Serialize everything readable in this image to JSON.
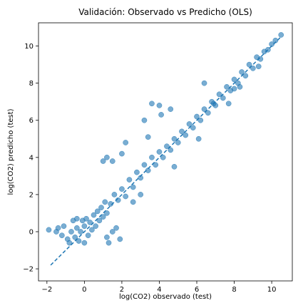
{
  "chart_data": {
    "type": "scatter",
    "title": "Validación: Observado vs Predicho (OLS)",
    "xlabel": "log(CO2) observado (test)",
    "ylabel": "log(CO2) predicho (test)",
    "xlim": [
      -2.45,
      11.1
    ],
    "ylim": [
      -2.65,
      11.25
    ],
    "xticks": [
      -2,
      0,
      2,
      4,
      6,
      8,
      10
    ],
    "yticks": [
      -2,
      0,
      2,
      4,
      6,
      8,
      10
    ],
    "grid": false,
    "point_color": "#1f77b4",
    "point_alpha": 0.6,
    "reference_line": {
      "style": "dashed",
      "color": "#1f77b4",
      "from": [
        -1.8,
        -1.8
      ],
      "to": [
        10.5,
        10.5
      ]
    },
    "points": [
      [
        -1.9,
        0.1
      ],
      [
        -1.5,
        0.0
      ],
      [
        -1.4,
        0.2
      ],
      [
        -1.2,
        -0.2
      ],
      [
        -1.1,
        0.3
      ],
      [
        -0.9,
        -0.4
      ],
      [
        -0.8,
        -0.6
      ],
      [
        -0.7,
        0.0
      ],
      [
        -0.6,
        0.6
      ],
      [
        -0.5,
        -0.3
      ],
      [
        -0.4,
        0.2
      ],
      [
        -0.4,
        0.7
      ],
      [
        -0.3,
        -0.5
      ],
      [
        -0.2,
        0.0
      ],
      [
        -0.1,
        0.6
      ],
      [
        0.0,
        -0.6
      ],
      [
        0.0,
        0.3
      ],
      [
        0.1,
        0.7
      ],
      [
        0.2,
        -0.2
      ],
      [
        0.3,
        0.5
      ],
      [
        0.4,
        0.1
      ],
      [
        0.5,
        0.9
      ],
      [
        0.6,
        0.3
      ],
      [
        0.7,
        1.1
      ],
      [
        0.8,
        0.6
      ],
      [
        0.9,
        1.3
      ],
      [
        1.0,
        0.8
      ],
      [
        1.1,
        1.6
      ],
      [
        1.2,
        -0.3
      ],
      [
        1.3,
        -0.6
      ],
      [
        1.5,
        0.0
      ],
      [
        1.7,
        0.2
      ],
      [
        1.9,
        -0.4
      ],
      [
        1.2,
        1.0
      ],
      [
        1.4,
        1.5
      ],
      [
        1.6,
        2.0
      ],
      [
        1.8,
        1.7
      ],
      [
        2.0,
        2.3
      ],
      [
        2.2,
        1.9
      ],
      [
        2.4,
        2.8
      ],
      [
        2.6,
        2.4
      ],
      [
        2.8,
        3.2
      ],
      [
        3.0,
        2.9
      ],
      [
        3.2,
        3.6
      ],
      [
        3.4,
        3.3
      ],
      [
        3.6,
        4.0
      ],
      [
        3.8,
        3.6
      ],
      [
        4.0,
        4.3
      ],
      [
        4.2,
        4.0
      ],
      [
        4.4,
        4.6
      ],
      [
        4.6,
        4.4
      ],
      [
        4.8,
        5.0
      ],
      [
        5.0,
        4.8
      ],
      [
        5.2,
        5.4
      ],
      [
        5.4,
        5.2
      ],
      [
        5.6,
        5.8
      ],
      [
        5.8,
        5.6
      ],
      [
        6.0,
        6.2
      ],
      [
        6.2,
        6.0
      ],
      [
        6.4,
        6.6
      ],
      [
        6.6,
        6.4
      ],
      [
        6.8,
        7.0
      ],
      [
        7.0,
        6.8
      ],
      [
        7.2,
        7.4
      ],
      [
        7.4,
        7.2
      ],
      [
        7.6,
        7.8
      ],
      [
        7.8,
        7.6
      ],
      [
        8.0,
        8.2
      ],
      [
        8.2,
        8.0
      ],
      [
        8.4,
        8.6
      ],
      [
        8.6,
        8.4
      ],
      [
        8.8,
        9.0
      ],
      [
        9.0,
        8.8
      ],
      [
        9.2,
        9.4
      ],
      [
        9.4,
        9.3
      ],
      [
        9.6,
        9.7
      ],
      [
        9.8,
        9.8
      ],
      [
        10.0,
        10.1
      ],
      [
        10.2,
        10.3
      ],
      [
        10.5,
        10.6
      ],
      [
        1.0,
        3.8
      ],
      [
        1.2,
        4.0
      ],
      [
        1.5,
        3.8
      ],
      [
        2.0,
        4.2
      ],
      [
        2.2,
        4.8
      ],
      [
        3.4,
        5.1
      ],
      [
        3.2,
        6.0
      ],
      [
        4.1,
        6.3
      ],
      [
        4.6,
        6.6
      ],
      [
        4.0,
        6.8
      ],
      [
        3.6,
        6.9
      ],
      [
        6.4,
        8.0
      ],
      [
        6.9,
        6.9
      ],
      [
        8.3,
        7.8
      ],
      [
        9.3,
        8.9
      ],
      [
        8.0,
        7.7
      ],
      [
        3.0,
        2.0
      ],
      [
        2.6,
        1.6
      ],
      [
        4.8,
        3.5
      ],
      [
        6.1,
        5.0
      ],
      [
        7.7,
        6.9
      ]
    ]
  }
}
